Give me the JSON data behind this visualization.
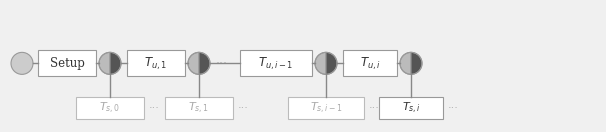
{
  "bg_color": "#f0f0f0",
  "box_color": "#ffffff",
  "box_edge_color": "#999999",
  "dark_half": "#555555",
  "light_half": "#bbbbbb",
  "init_circle_color": "#cccccc",
  "init_circle_edge": "#999999",
  "line_color": "#888888",
  "settle_text_color": "#aaaaaa",
  "update_text_color": "#333333",
  "dots_color": "#aaaaaa",
  "setup_label": "Setup",
  "update_labels": [
    "$T_{u,1}$",
    "$T_{u,i-1}$",
    "$T_{u,i}$"
  ],
  "settle_labels": [
    "$T_{s,0}$",
    "$T_{s,1}$",
    "$T_{s,i-1}$",
    "$T_{s,i}$"
  ],
  "figsize": [
    6.06,
    1.32
  ],
  "dpi": 100
}
